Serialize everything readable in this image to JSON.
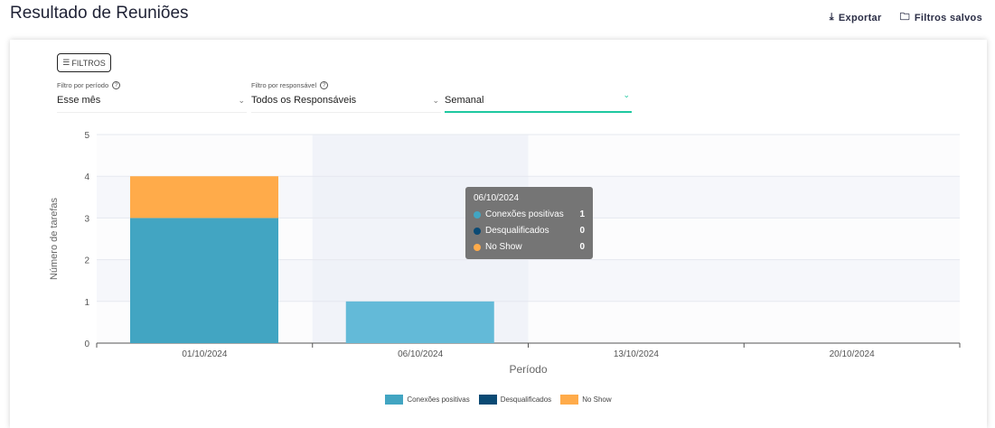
{
  "header": {
    "title": "Resultado de Reuniões",
    "export_label": "Exportar",
    "saved_filters_label": "Filtros salvos"
  },
  "filters": {
    "button_label": "FILTROS",
    "period_label": "Filtro por período",
    "period_value": "Esse mês",
    "owner_label": "Filtro por responsável",
    "owner_value": "Todos os Responsáveis",
    "granularity_value": "Semanal"
  },
  "colors": {
    "accent": "#1ec8a0",
    "conexoes": "#42a5c2",
    "conexoes_hover": "#63bad8",
    "desqualificados": "#0a4a74",
    "noshow": "#ffab4a"
  },
  "chart_data": {
    "type": "bar",
    "stacked": true,
    "categories": [
      "01/10/2024",
      "06/10/2024",
      "13/10/2024",
      "20/10/2024"
    ],
    "series": [
      {
        "name": "Conexões positivas",
        "values": [
          3,
          1,
          0,
          0
        ]
      },
      {
        "name": "Desqualificados",
        "values": [
          0,
          0,
          0,
          0
        ]
      },
      {
        "name": "No Show",
        "values": [
          1,
          0,
          0,
          0
        ]
      }
    ],
    "xlabel": "Período",
    "ylabel": "Número de tarefas",
    "ylim": [
      0,
      5
    ],
    "yticks": [
      "0",
      "1",
      "2",
      "3",
      "4",
      "5"
    ],
    "grid": true,
    "legend": "bottom"
  },
  "tooltip": {
    "title": "06/10/2024",
    "rows": [
      {
        "label": "Conexões positivas",
        "value": "1"
      },
      {
        "label": "Desqualificados",
        "value": "0"
      },
      {
        "label": "No Show",
        "value": "0"
      }
    ]
  }
}
